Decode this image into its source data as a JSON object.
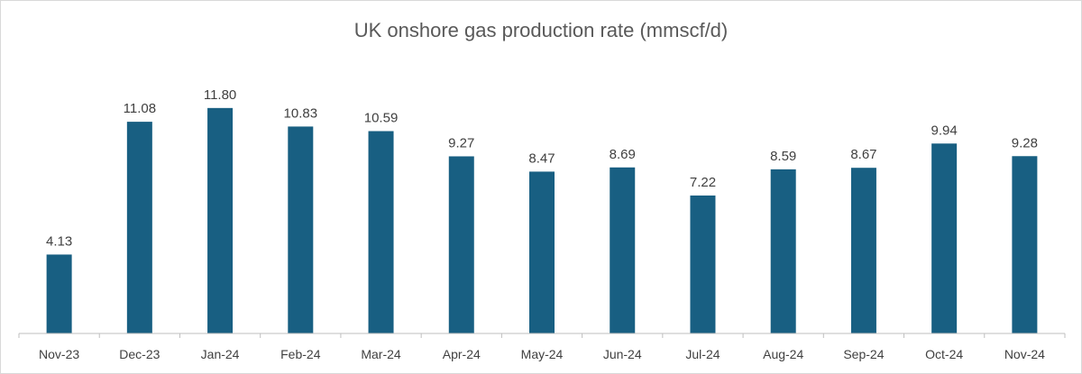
{
  "chart_data": {
    "type": "bar",
    "title": "UK onshore gas production rate (mmscf/d)",
    "categories": [
      "Nov-23",
      "Dec-23",
      "Jan-24",
      "Feb-24",
      "Mar-24",
      "Apr-24",
      "May-24",
      "Jun-24",
      "Jul-24",
      "Aug-24",
      "Sep-24",
      "Oct-24",
      "Nov-24"
    ],
    "series": [
      {
        "values": [
          4.13,
          11.08,
          11.8,
          10.83,
          10.59,
          9.27,
          8.47,
          8.69,
          7.22,
          8.59,
          8.67,
          9.94,
          9.28
        ],
        "labels": [
          "4.13",
          "11.08",
          "11.80",
          "10.83",
          "10.59",
          "9.27",
          "8.47",
          "8.69",
          "7.22",
          "8.59",
          "8.67",
          "9.94",
          "9.28"
        ],
        "color": "#185f82"
      }
    ],
    "xlabel": "",
    "ylabel": "",
    "ylim": [
      0,
      13.5
    ],
    "grid": false,
    "legend": "none",
    "data_labels": "above bars"
  },
  "colors": {
    "bar": "#185f82",
    "axis": "#bfbfbf",
    "text": "#404040",
    "title": "#595959"
  }
}
